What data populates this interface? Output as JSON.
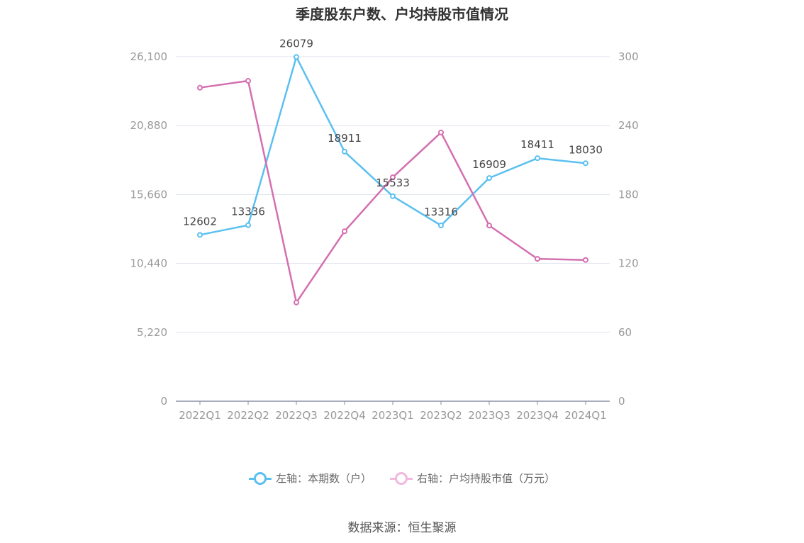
{
  "title": "季度股东户数、户均持股市值情况",
  "source": "数据来源：恒生聚源",
  "legend": {
    "left_label": "左轴：本期数（户）",
    "right_label": "右轴：户均持股市值（万元）"
  },
  "chart_data": {
    "type": "line",
    "title": "季度股东户数、户均持股市值情况",
    "categories": [
      "2022Q1",
      "2022Q2",
      "2022Q3",
      "2022Q4",
      "2023Q1",
      "2023Q2",
      "2023Q3",
      "2023Q4",
      "2024Q1"
    ],
    "left_axis": {
      "min": 0,
      "max": 26100,
      "ticks": [
        "0",
        "5,220",
        "10,440",
        "15,660",
        "20,880",
        "26,100"
      ]
    },
    "right_axis": {
      "min": 0,
      "max": 300,
      "ticks": [
        "0",
        "60",
        "120",
        "180",
        "240",
        "300"
      ]
    },
    "series": [
      {
        "name": "左轴：本期数（户）",
        "axis": "left",
        "color": "#5bc0f0",
        "values": [
          12602,
          13336,
          26079,
          18911,
          15533,
          13316,
          16909,
          18411,
          18030
        ],
        "labels": [
          "12602",
          "13336",
          "26079",
          "18911",
          "15533",
          "13316",
          "16909",
          "18411",
          "18030"
        ]
      },
      {
        "name": "右轴：户均持股市值（万元）",
        "axis": "right",
        "color": "#d46fb0",
        "values": [
          273,
          279,
          86,
          148,
          195,
          234,
          153,
          124,
          123
        ]
      }
    ],
    "grid": true,
    "legend_position": "bottom"
  }
}
